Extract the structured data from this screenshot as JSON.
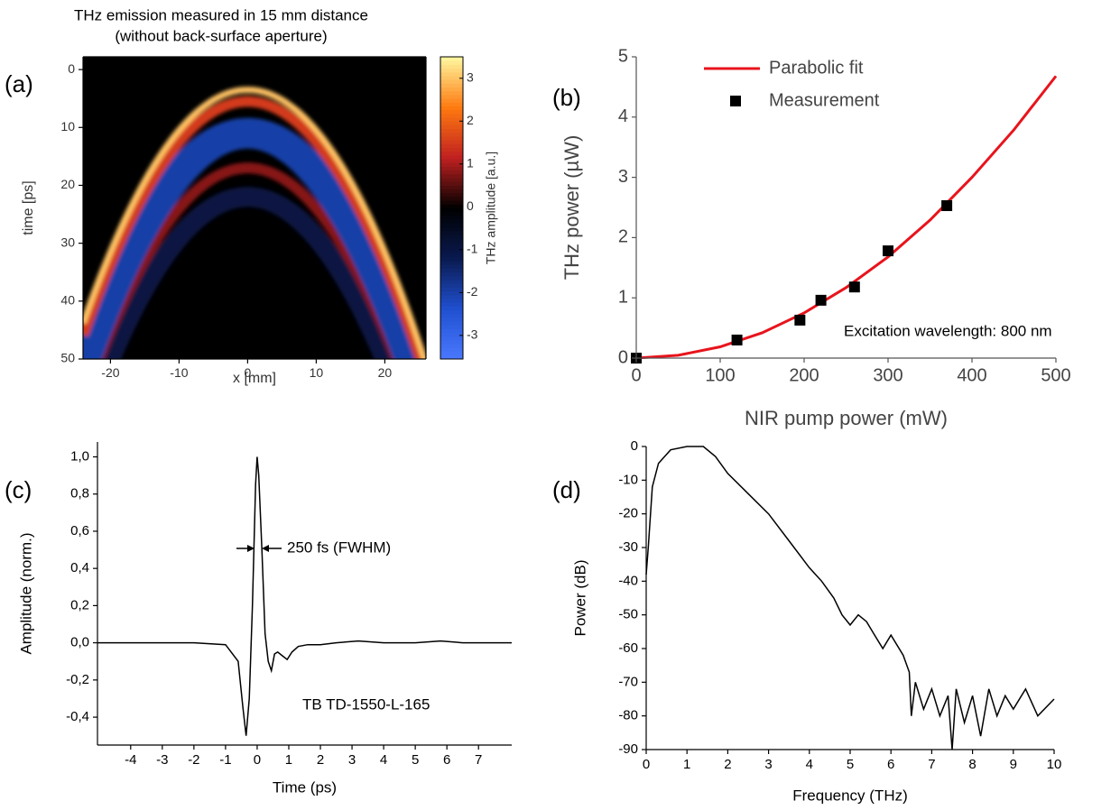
{
  "chart_data": [
    {
      "type": "heatmap",
      "label": "(a)",
      "title": "THz emission measured in 15 mm distance",
      "subtitle": "(without back-surface aperture)",
      "xlabel": "x [mm]",
      "ylabel": "time [ps]",
      "colorbar_label": "THz amplitude [a.u.]",
      "xlim": [
        -24,
        26
      ],
      "ylim": [
        -2.2,
        50
      ],
      "y_inverted": true,
      "frame": true,
      "xticks": [
        -20,
        -10,
        0,
        10,
        20
      ],
      "yticks": [
        0,
        10,
        20,
        30,
        40,
        50
      ],
      "clim": [
        -3.55,
        3.5
      ],
      "cticks": [
        -3,
        -2,
        -1,
        0,
        1,
        2,
        3
      ],
      "colormap": [
        "#4a78ff",
        "#2050d0",
        "#0a1a50",
        "#000000",
        "#c02020",
        "#ff7a10",
        "#fff8a0"
      ],
      "bands": [
        {
          "t0": 3.5,
          "amplitude": 3
        },
        {
          "t0": 5.5,
          "amplitude": 1.5
        },
        {
          "t0": 11,
          "amplitude": -2
        },
        {
          "t0": 17,
          "amplitude": 0.8
        },
        {
          "t0": 22,
          "amplitude": -1
        }
      ]
    },
    {
      "type": "scatter",
      "label": "(b)",
      "xlabel": "NIR pump power (mW)",
      "ylabel": "THz power (µW)",
      "annotation": "Excitation wavelength: 800 nm",
      "legend": "top-left",
      "xlim": [
        0,
        500
      ],
      "ylim": [
        0,
        5
      ],
      "xticks": [
        0,
        100,
        200,
        300,
        400,
        500
      ],
      "yticks": [
        0,
        1,
        2,
        3,
        4,
        5
      ],
      "series": [
        {
          "name": "Parabolic fit",
          "color": "#e8141c",
          "kind": "line",
          "x": [
            0,
            50,
            100,
            150,
            200,
            250,
            300,
            350,
            400,
            450,
            500
          ],
          "values": [
            0,
            0.047,
            0.187,
            0.42,
            0.75,
            1.17,
            1.68,
            2.29,
            3.0,
            3.79,
            4.68
          ]
        },
        {
          "name": "Measurement",
          "color": "#000000",
          "kind": "scatter",
          "x": [
            0,
            120,
            195,
            220,
            260,
            300,
            370
          ],
          "values": [
            0,
            0.3,
            0.63,
            0.96,
            1.18,
            1.78,
            2.53
          ]
        }
      ]
    },
    {
      "type": "line",
      "label": "(c)",
      "xlabel": "Time (ps)",
      "ylabel": "Amplitude (norm.)",
      "annotations": [
        "250 fs (FWHM)",
        "TB TD-1550-L-165"
      ],
      "xlim": [
        -5.05,
        8.05
      ],
      "ylim": [
        -0.55,
        1.08
      ],
      "xticks": [
        -4,
        -3,
        -2,
        -1,
        0,
        1,
        2,
        3,
        4,
        5,
        6,
        7
      ],
      "yticks": [
        {
          "value": -0.4,
          "label": "-0,4"
        },
        {
          "value": -0.2,
          "label": "-0,2"
        },
        {
          "value": 0,
          "label": "0,0"
        },
        {
          "value": 0.2,
          "label": "0,2"
        },
        {
          "value": 0.4,
          "label": "0,4"
        },
        {
          "value": 0.6,
          "label": "0,6"
        },
        {
          "value": 0.8,
          "label": "0,8"
        },
        {
          "value": 1,
          "label": "1,0"
        }
      ],
      "series": [
        {
          "color": "#000000",
          "x": [
            -5.05,
            -2,
            -1,
            -0.6,
            -0.45,
            -0.35,
            -0.25,
            -0.15,
            -0.05,
            0,
            0.05,
            0.15,
            0.25,
            0.35,
            0.45,
            0.55,
            0.65,
            0.8,
            0.95,
            1.1,
            1.3,
            1.6,
            2,
            2.5,
            3.2,
            4,
            5,
            5.8,
            6.5,
            8.05
          ],
          "values": [
            0,
            0,
            -0.01,
            -0.1,
            -0.35,
            -0.5,
            -0.3,
            0.2,
            0.85,
            1.0,
            0.9,
            0.5,
            0.05,
            -0.1,
            -0.15,
            -0.06,
            -0.05,
            -0.07,
            -0.09,
            -0.05,
            -0.02,
            -0.01,
            -0.01,
            0,
            0.01,
            0,
            0,
            0.01,
            0,
            0
          ]
        }
      ]
    },
    {
      "type": "line",
      "label": "(d)",
      "xlabel": "Frequency (THz)",
      "ylabel": "Power (dB)",
      "xlim": [
        0,
        10
      ],
      "ylim": [
        -90,
        0
      ],
      "xticks": [
        0,
        1,
        2,
        3,
        4,
        5,
        6,
        7,
        8,
        9,
        10
      ],
      "yticks": [
        -90,
        -80,
        -70,
        -60,
        -50,
        -40,
        -30,
        -20,
        -10,
        0
      ],
      "series": [
        {
          "color": "#000000",
          "x": [
            0,
            0.05,
            0.15,
            0.3,
            0.6,
            1,
            1.4,
            1.7,
            2,
            2.5,
            3,
            3.5,
            4,
            4.3,
            4.6,
            4.8,
            5,
            5.2,
            5.4,
            5.6,
            5.8,
            6,
            6.3,
            6.45,
            6.5,
            6.6,
            6.8,
            7,
            7.2,
            7.4,
            7.5,
            7.6,
            7.8,
            8,
            8.2,
            8.4,
            8.6,
            8.8,
            9,
            9.3,
            9.6,
            10
          ],
          "values": [
            -38,
            -30,
            -12,
            -5,
            -1,
            0,
            0,
            -3,
            -8,
            -14,
            -20,
            -28,
            -36,
            -40,
            -45,
            -50,
            -53,
            -50,
            -52,
            -56,
            -60,
            -56,
            -62,
            -67,
            -80,
            -70,
            -78,
            -72,
            -80,
            -74,
            -90,
            -72,
            -82,
            -74,
            -86,
            -72,
            -80,
            -74,
            -78,
            -72,
            -80,
            -75
          ]
        }
      ]
    }
  ]
}
